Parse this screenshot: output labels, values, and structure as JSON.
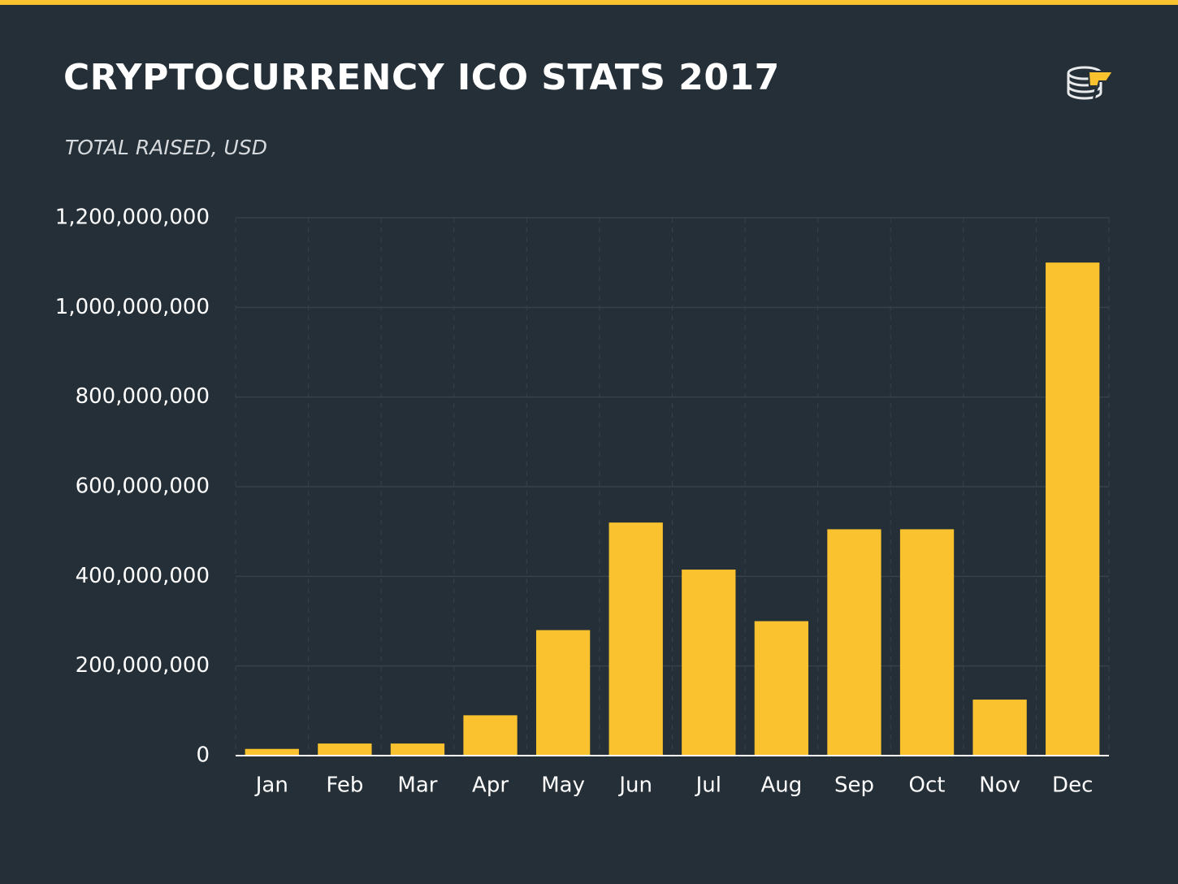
{
  "chart_data": {
    "type": "bar",
    "title": "CRYPTOCURRENCY ICO STATS 2017",
    "subtitle": "TOTAL RAISED, USD",
    "categories": [
      "Jan",
      "Feb",
      "Mar",
      "Apr",
      "May",
      "Jun",
      "Jul",
      "Aug",
      "Sep",
      "Oct",
      "Nov",
      "Dec"
    ],
    "values": [
      15000000,
      27000000,
      27000000,
      90000000,
      280000000,
      520000000,
      415000000,
      300000000,
      505000000,
      505000000,
      125000000,
      1100000000
    ],
    "color": "#f9c22e",
    "ylim": [
      0,
      1200000000
    ],
    "yticks": [
      0,
      {
        "value": 200000000,
        "label": "200,000,000"
      },
      {
        "value": 400000000,
        "label": "400,000,000"
      },
      {
        "value": 600000000,
        "label": "600,000,000"
      },
      {
        "value": 800000000,
        "label": "800,000,000"
      },
      {
        "value": 1000000000,
        "label": "1,000,000,000"
      },
      {
        "value": 1200000000,
        "label": "1,200,000,000"
      }
    ],
    "grid": true
  }
}
